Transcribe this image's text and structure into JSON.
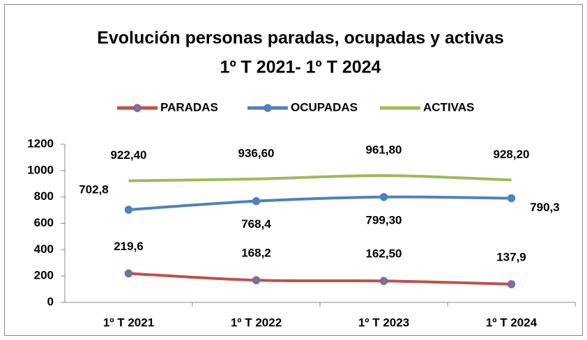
{
  "chart_data": {
    "type": "line",
    "title": [
      "Evolución personas paradas, ocupadas y activas",
      "1º T 2021- 1º T 2024"
    ],
    "categories": [
      "1º T 2021",
      "1º T 2022",
      "1º T 2023",
      "1º T 2024"
    ],
    "series": [
      {
        "name": "PARADAS",
        "color": "#c0504d",
        "values": [
          219.6,
          168.2,
          162.5,
          137.9
        ],
        "value_labels": [
          "219,6",
          "168,2",
          "162,50",
          "137,9"
        ]
      },
      {
        "name": "OCUPADAS",
        "color": "#4f81bd",
        "values": [
          702.8,
          768.4,
          799.3,
          790.3
        ],
        "value_labels": [
          "702,8",
          "768,4",
          "799,30",
          "790,3"
        ]
      },
      {
        "name": "ACTIVAS",
        "color": "#9bbb59",
        "values": [
          922.4,
          936.6,
          961.8,
          928.2
        ],
        "value_labels": [
          "922,40",
          "936,60",
          "961,80",
          "928,20"
        ]
      }
    ],
    "ylim": [
      0,
      1200
    ],
    "yticks": [
      0,
      200,
      400,
      600,
      800,
      1000,
      1200
    ],
    "legend": "top"
  }
}
